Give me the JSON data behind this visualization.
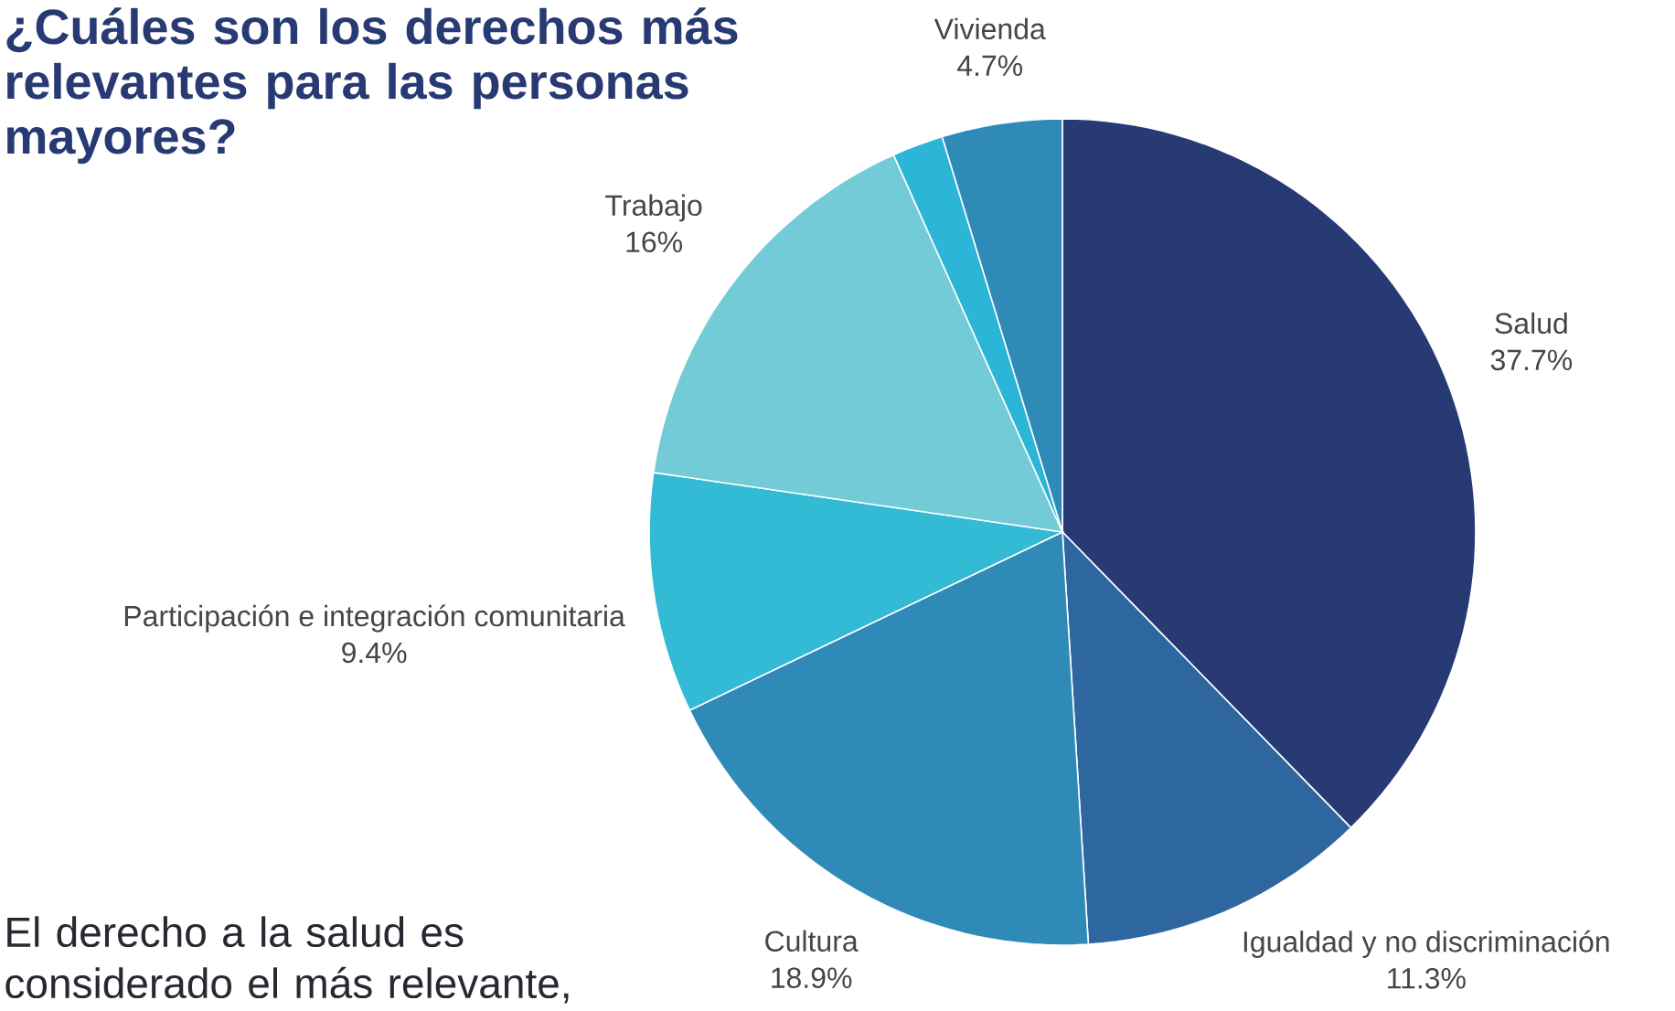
{
  "chart_data": {
    "type": "pie",
    "title": "¿Cuáles son los derechos más relevantes para las personas mayores?",
    "categories": [
      "Salud",
      "Igualdad y no discriminación",
      "Cultura",
      "Participación e integración comunitaria",
      "Trabajo",
      null,
      "Vivienda"
    ],
    "values": [
      37.7,
      11.3,
      18.9,
      9.4,
      16,
      2.0,
      4.7
    ],
    "colors": [
      "#283a73",
      "#2e66a0",
      "#2f8ab8",
      "#33bbd6",
      "#72cbd6",
      "#2bb5d6",
      "#2f8ab8"
    ],
    "value_labels": [
      "37.7%",
      "11.3%",
      "18.9%",
      "9.4%",
      "16%",
      null,
      "4.7%"
    ],
    "annotations": [
      "El derecho a la salud es considerado el más relevante,"
    ]
  }
}
